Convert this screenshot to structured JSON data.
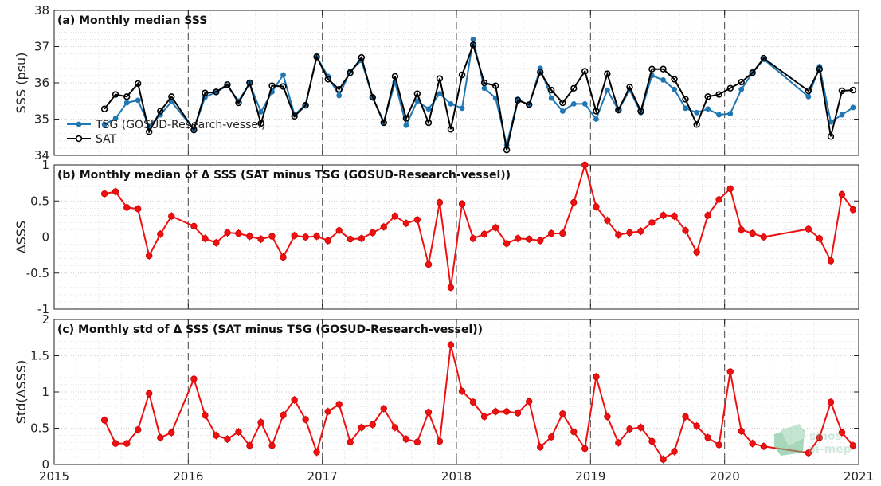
{
  "chart_data": [
    {
      "type": "line",
      "title": "(a) Monthly median SSS",
      "ylabel": "SSS (psu)",
      "xlim": [
        2015,
        2021
      ],
      "ylim": [
        34,
        38
      ],
      "yticks": [
        "34",
        "35",
        "36",
        "37",
        "38"
      ],
      "grid": true,
      "legend": "left",
      "series": [
        {
          "name": "TSG (GOSUD-Research-vessel)",
          "color": "#1f77b4",
          "marker": "dot",
          "x": [
            2015.375,
            2015.458,
            2015.542,
            2015.625,
            2015.708,
            2015.792,
            2015.875,
            2016.042,
            2016.125,
            2016.208,
            2016.292,
            2016.375,
            2016.458,
            2016.542,
            2016.625,
            2016.708,
            2016.792,
            2016.875,
            2016.958,
            2017.042,
            2017.125,
            2017.208,
            2017.292,
            2017.375,
            2017.458,
            2017.542,
            2017.625,
            2017.708,
            2017.792,
            2017.875,
            2017.958,
            2018.042,
            2018.125,
            2018.208,
            2018.292,
            2018.375,
            2018.458,
            2018.542,
            2018.625,
            2018.708,
            2018.792,
            2018.875,
            2018.958,
            2019.042,
            2019.125,
            2019.208,
            2019.292,
            2019.375,
            2019.458,
            2019.542,
            2019.625,
            2019.708,
            2019.792,
            2019.875,
            2019.958,
            2020.042,
            2020.125,
            2020.208,
            2020.292,
            2020.625,
            2020.708,
            2020.792,
            2020.875,
            2020.958
          ],
          "y": [
            34.85,
            35.02,
            35.45,
            35.52,
            34.8,
            35.12,
            35.48,
            34.72,
            35.6,
            35.75,
            35.92,
            35.5,
            35.98,
            35.2,
            35.75,
            36.22,
            35.12,
            35.4,
            36.72,
            36.18,
            35.65,
            36.32,
            36.62,
            35.6,
            34.92,
            36.02,
            34.83,
            35.5,
            35.28,
            35.7,
            35.42,
            35.3,
            37.2,
            35.85,
            35.58,
            34.28,
            35.55,
            35.38,
            36.4,
            35.58,
            35.22,
            35.42,
            35.42,
            35.0,
            35.8,
            35.25,
            35.8,
            35.18,
            36.2,
            36.08,
            35.82,
            35.3,
            35.18,
            35.28,
            35.12,
            35.15,
            35.82,
            36.28,
            36.65,
            35.62,
            36.45,
            34.92,
            35.12,
            35.32
          ]
        },
        {
          "name": "SAT",
          "color": "#000000",
          "marker": "circle",
          "x": [
            2015.375,
            2015.458,
            2015.542,
            2015.625,
            2015.708,
            2015.792,
            2015.875,
            2016.042,
            2016.125,
            2016.208,
            2016.292,
            2016.375,
            2016.458,
            2016.542,
            2016.625,
            2016.708,
            2016.792,
            2016.875,
            2016.958,
            2017.042,
            2017.125,
            2017.208,
            2017.292,
            2017.375,
            2017.458,
            2017.542,
            2017.625,
            2017.708,
            2017.792,
            2017.875,
            2017.958,
            2018.042,
            2018.125,
            2018.208,
            2018.292,
            2018.375,
            2018.458,
            2018.542,
            2018.625,
            2018.708,
            2018.792,
            2018.875,
            2018.958,
            2019.042,
            2019.125,
            2019.208,
            2019.292,
            2019.375,
            2019.458,
            2019.542,
            2019.625,
            2019.708,
            2019.792,
            2019.875,
            2019.958,
            2020.042,
            2020.125,
            2020.208,
            2020.292,
            2020.625,
            2020.708,
            2020.792,
            2020.875,
            2020.958
          ],
          "y": [
            35.28,
            35.68,
            35.62,
            35.98,
            34.65,
            35.22,
            35.62,
            34.7,
            35.72,
            35.75,
            35.95,
            35.45,
            36.0,
            34.88,
            35.92,
            35.9,
            35.08,
            35.38,
            36.72,
            36.1,
            35.82,
            36.28,
            36.7,
            35.6,
            34.9,
            36.18,
            35.02,
            35.7,
            34.9,
            36.12,
            34.72,
            36.22,
            37.05,
            36.0,
            35.92,
            34.15,
            35.52,
            35.4,
            36.3,
            35.8,
            35.45,
            35.85,
            36.32,
            35.22,
            36.25,
            35.25,
            35.88,
            35.22,
            36.38,
            36.38,
            36.1,
            35.55,
            34.85,
            35.62,
            35.68,
            35.85,
            36.02,
            36.28,
            36.68,
            35.78,
            36.38,
            34.52,
            35.78,
            35.8
          ]
        }
      ]
    },
    {
      "type": "line",
      "title": "(b) Monthly median of Δ SSS (SAT minus TSG (GOSUD-Research-vessel))",
      "ylabel": "ΔSSS",
      "xlim": [
        2015,
        2021
      ],
      "ylim": [
        -1,
        1
      ],
      "yticks": [
        "-1",
        "-0.5",
        "0",
        "0.5",
        "1"
      ],
      "grid": true,
      "series": [
        {
          "name": "",
          "color": "#ee1111",
          "marker": "circle",
          "x": [
            2015.375,
            2015.458,
            2015.542,
            2015.625,
            2015.708,
            2015.792,
            2015.875,
            2016.042,
            2016.125,
            2016.208,
            2016.292,
            2016.375,
            2016.458,
            2016.542,
            2016.625,
            2016.708,
            2016.792,
            2016.875,
            2016.958,
            2017.042,
            2017.125,
            2017.208,
            2017.292,
            2017.375,
            2017.458,
            2017.542,
            2017.625,
            2017.708,
            2017.792,
            2017.875,
            2017.958,
            2018.042,
            2018.125,
            2018.208,
            2018.292,
            2018.375,
            2018.458,
            2018.542,
            2018.625,
            2018.708,
            2018.792,
            2018.875,
            2018.958,
            2019.042,
            2019.125,
            2019.208,
            2019.292,
            2019.375,
            2019.458,
            2019.542,
            2019.625,
            2019.708,
            2019.792,
            2019.875,
            2019.958,
            2020.042,
            2020.125,
            2020.208,
            2020.292,
            2020.625,
            2020.708,
            2020.792,
            2020.875,
            2020.958
          ],
          "y": [
            0.6,
            0.63,
            0.41,
            0.39,
            -0.26,
            0.04,
            0.29,
            0.15,
            -0.02,
            -0.08,
            0.06,
            0.05,
            0.01,
            -0.03,
            0.01,
            -0.28,
            0.02,
            0.0,
            0.01,
            -0.05,
            0.09,
            -0.03,
            -0.02,
            0.06,
            0.14,
            0.29,
            0.19,
            0.24,
            -0.38,
            0.48,
            -0.7,
            0.46,
            -0.02,
            0.04,
            0.13,
            -0.09,
            -0.02,
            -0.03,
            -0.05,
            0.05,
            0.05,
            0.48,
            1.0,
            0.42,
            0.23,
            0.03,
            0.06,
            0.08,
            0.2,
            0.3,
            0.29,
            0.09,
            -0.21,
            0.3,
            0.52,
            0.67,
            0.1,
            0.05,
            0.0,
            0.11,
            -0.02,
            -0.33,
            0.59,
            0.38
          ]
        }
      ]
    },
    {
      "type": "line",
      "title": "(c) Monthly std of Δ SSS (SAT minus TSG (GOSUD-Research-vessel))",
      "ylabel": "Std(ΔSSS)",
      "xlim": [
        2015,
        2021
      ],
      "ylim": [
        0,
        2
      ],
      "yticks": [
        "0",
        "0.5",
        "1",
        "1.5",
        "2"
      ],
      "xticks": [
        "2015",
        "2016",
        "2017",
        "2018",
        "2019",
        "2020",
        "2021"
      ],
      "grid": true,
      "series": [
        {
          "name": "",
          "color": "#ee1111",
          "marker": "circle",
          "x": [
            2015.375,
            2015.458,
            2015.542,
            2015.625,
            2015.708,
            2015.792,
            2015.875,
            2016.042,
            2016.125,
            2016.208,
            2016.292,
            2016.375,
            2016.458,
            2016.542,
            2016.625,
            2016.708,
            2016.792,
            2016.875,
            2016.958,
            2017.042,
            2017.125,
            2017.208,
            2017.292,
            2017.375,
            2017.458,
            2017.542,
            2017.625,
            2017.708,
            2017.792,
            2017.875,
            2017.958,
            2018.042,
            2018.125,
            2018.208,
            2018.292,
            2018.375,
            2018.458,
            2018.542,
            2018.625,
            2018.708,
            2018.792,
            2018.875,
            2018.958,
            2019.042,
            2019.125,
            2019.208,
            2019.292,
            2019.375,
            2019.458,
            2019.542,
            2019.625,
            2019.708,
            2019.792,
            2019.875,
            2019.958,
            2020.042,
            2020.125,
            2020.208,
            2020.292,
            2020.625,
            2020.708,
            2020.792,
            2020.875,
            2020.958
          ],
          "y": [
            0.61,
            0.29,
            0.29,
            0.48,
            0.98,
            0.37,
            0.44,
            1.18,
            0.68,
            0.4,
            0.35,
            0.45,
            0.26,
            0.58,
            0.26,
            0.68,
            0.89,
            0.62,
            0.17,
            0.73,
            0.83,
            0.31,
            0.51,
            0.55,
            0.77,
            0.51,
            0.35,
            0.31,
            0.72,
            0.32,
            1.65,
            1.01,
            0.86,
            0.66,
            0.73,
            0.73,
            0.71,
            0.87,
            0.24,
            0.38,
            0.7,
            0.45,
            0.22,
            1.21,
            0.66,
            0.3,
            0.49,
            0.51,
            0.32,
            0.07,
            0.18,
            0.66,
            0.53,
            0.37,
            0.27,
            1.28,
            0.46,
            0.29,
            0.25,
            0.16,
            0.37,
            0.86,
            0.44,
            0.26
          ]
        }
      ]
    }
  ],
  "watermark": {
    "line1": "smos",
    "line2": "pi-mep"
  }
}
